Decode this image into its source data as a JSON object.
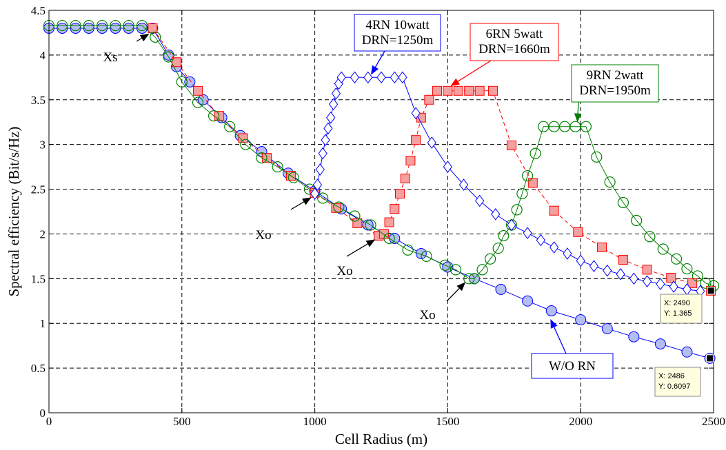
{
  "chart_data": {
    "type": "line",
    "xlabel": "Cell Radius (m)",
    "ylabel": "Spectral efficiency (Bit/s/Hz)",
    "xlim": [
      0,
      2500
    ],
    "ylim": [
      0,
      4.5
    ],
    "xticks": [
      0,
      500,
      1000,
      1500,
      2000,
      2500
    ],
    "yticks": [
      0,
      0.5,
      1,
      1.5,
      2,
      2.5,
      3,
      3.5,
      4,
      4.5
    ],
    "xtick_labels": [
      "0",
      "500",
      "1000",
      "1500",
      "2000",
      "2500"
    ],
    "ytick_labels": [
      "0",
      "0.5",
      "1",
      "1.5",
      "2",
      "2.5",
      "3",
      "3.5",
      "4",
      "4.5"
    ],
    "grid": true,
    "series": [
      {
        "marker": "circle-filled",
        "color": "#0000ff",
        "fill": "#b4bef0",
        "linestyle": "solid",
        "points": [
          [
            0,
            4.3
          ],
          [
            50,
            4.3
          ],
          [
            100,
            4.3
          ],
          [
            150,
            4.3
          ],
          [
            200,
            4.3
          ],
          [
            250,
            4.3
          ],
          [
            300,
            4.3
          ],
          [
            350,
            4.3
          ],
          [
            390,
            4.3
          ],
          [
            450,
            4.0
          ],
          [
            480,
            3.87
          ],
          [
            530,
            3.7
          ],
          [
            580,
            3.5
          ],
          [
            650,
            3.3
          ],
          [
            720,
            3.1
          ],
          [
            800,
            2.92
          ],
          [
            900,
            2.68
          ],
          [
            1000,
            2.48
          ],
          [
            1100,
            2.28
          ],
          [
            1200,
            2.1
          ],
          [
            1300,
            1.95
          ],
          [
            1400,
            1.78
          ],
          [
            1500,
            1.63
          ],
          [
            1600,
            1.5
          ],
          [
            1700,
            1.38
          ],
          [
            1800,
            1.25
          ],
          [
            1890,
            1.14
          ],
          [
            2000,
            1.04
          ],
          [
            2100,
            0.94
          ],
          [
            2200,
            0.85
          ],
          [
            2300,
            0.77
          ],
          [
            2400,
            0.68
          ],
          [
            2486,
            0.6097
          ]
        ]
      },
      {
        "marker": "square",
        "color": "#ff0000",
        "fill": "#f4a0a0",
        "linestyle": "dashed",
        "points": [
          [
            390,
            4.3
          ],
          [
            480,
            3.92
          ],
          [
            560,
            3.6
          ],
          [
            640,
            3.32
          ],
          [
            730,
            3.07
          ],
          [
            820,
            2.85
          ],
          [
            910,
            2.65
          ],
          [
            1000,
            2.46
          ],
          [
            1080,
            2.29
          ],
          [
            1160,
            2.12
          ],
          [
            1240,
            1.98
          ],
          [
            1260,
            2.0
          ],
          [
            1280,
            2.13
          ],
          [
            1300,
            2.28
          ],
          [
            1320,
            2.45
          ],
          [
            1340,
            2.62
          ],
          [
            1360,
            2.82
          ],
          [
            1380,
            3.05
          ],
          [
            1400,
            3.3
          ],
          [
            1430,
            3.5
          ],
          [
            1460,
            3.6
          ],
          [
            1500,
            3.6
          ],
          [
            1540,
            3.6
          ],
          [
            1580,
            3.6
          ],
          [
            1620,
            3.6
          ],
          [
            1670,
            3.6
          ],
          [
            1740,
            2.99
          ],
          [
            1820,
            2.57
          ],
          [
            1900,
            2.26
          ],
          [
            1990,
            2.02
          ],
          [
            2080,
            1.85
          ],
          [
            2160,
            1.71
          ],
          [
            2250,
            1.6
          ],
          [
            2340,
            1.51
          ],
          [
            2420,
            1.45
          ],
          [
            2490,
            1.365
          ]
        ]
      },
      {
        "marker": "circle-open",
        "color": "#008000",
        "fill": "none",
        "linestyle": "solid",
        "points": [
          [
            0,
            4.33
          ],
          [
            50,
            4.33
          ],
          [
            100,
            4.33
          ],
          [
            150,
            4.33
          ],
          [
            200,
            4.33
          ],
          [
            250,
            4.33
          ],
          [
            300,
            4.33
          ],
          [
            350,
            4.33
          ],
          [
            400,
            4.2
          ],
          [
            450,
            3.98
          ],
          [
            500,
            3.7
          ],
          [
            560,
            3.47
          ],
          [
            620,
            3.32
          ],
          [
            680,
            3.2
          ],
          [
            740,
            3.0
          ],
          [
            800,
            2.85
          ],
          [
            860,
            2.75
          ],
          [
            920,
            2.63
          ],
          [
            980,
            2.5
          ],
          [
            1030,
            2.4
          ],
          [
            1090,
            2.3
          ],
          [
            1150,
            2.2
          ],
          [
            1210,
            2.1
          ],
          [
            1280,
            1.95
          ],
          [
            1350,
            1.82
          ],
          [
            1420,
            1.75
          ],
          [
            1490,
            1.65
          ],
          [
            1530,
            1.6
          ],
          [
            1580,
            1.5
          ],
          [
            1600,
            1.5
          ],
          [
            1630,
            1.6
          ],
          [
            1660,
            1.72
          ],
          [
            1690,
            1.84
          ],
          [
            1710,
            1.98
          ],
          [
            1740,
            2.1
          ],
          [
            1760,
            2.27
          ],
          [
            1780,
            2.45
          ],
          [
            1800,
            2.65
          ],
          [
            1830,
            2.9
          ],
          [
            1860,
            3.2
          ],
          [
            1900,
            3.2
          ],
          [
            1940,
            3.2
          ],
          [
            1980,
            3.2
          ],
          [
            2020,
            3.2
          ],
          [
            2060,
            2.86
          ],
          [
            2110,
            2.58
          ],
          [
            2160,
            2.35
          ],
          [
            2210,
            2.15
          ],
          [
            2260,
            1.97
          ],
          [
            2310,
            1.83
          ],
          [
            2360,
            1.72
          ],
          [
            2400,
            1.61
          ],
          [
            2440,
            1.53
          ],
          [
            2470,
            1.45
          ],
          [
            2500,
            1.42
          ]
        ]
      },
      {
        "marker": "diamond",
        "color": "#0000ff",
        "fill": "none",
        "linestyle": "solid",
        "points": [
          [
            1000,
            2.45
          ],
          [
            1010,
            2.55
          ],
          [
            1020,
            2.72
          ],
          [
            1030,
            2.9
          ],
          [
            1040,
            3.05
          ],
          [
            1050,
            3.18
          ],
          [
            1060,
            3.3
          ],
          [
            1070,
            3.45
          ],
          [
            1080,
            3.57
          ],
          [
            1090,
            3.68
          ],
          [
            1100,
            3.75
          ],
          [
            1150,
            3.75
          ],
          [
            1200,
            3.75
          ],
          [
            1250,
            3.75
          ],
          [
            1300,
            3.75
          ],
          [
            1330,
            3.75
          ],
          [
            1380,
            3.35
          ],
          [
            1440,
            3.02
          ],
          [
            1500,
            2.75
          ],
          [
            1560,
            2.55
          ],
          [
            1620,
            2.37
          ],
          [
            1680,
            2.22
          ],
          [
            1740,
            2.1
          ],
          [
            1800,
            2.01
          ],
          [
            1850,
            1.93
          ],
          [
            1900,
            1.85
          ],
          [
            1950,
            1.78
          ],
          [
            2000,
            1.7
          ],
          [
            2050,
            1.64
          ],
          [
            2100,
            1.59
          ],
          [
            2150,
            1.55
          ],
          [
            2200,
            1.5
          ],
          [
            2250,
            1.47
          ],
          [
            2300,
            1.44
          ],
          [
            2350,
            1.41
          ],
          [
            2400,
            1.38
          ],
          [
            2450,
            1.36
          ]
        ]
      }
    ],
    "annotations": [
      {
        "lines": [
          "4RN 10watt",
          "DRN=1250m"
        ],
        "color": "#0000ff",
        "target": [
          1200,
          3.75
        ]
      },
      {
        "lines": [
          "6RN 5watt",
          "DRN=1660m"
        ],
        "color": "#ff0000",
        "target": [
          1500,
          3.62
        ]
      },
      {
        "lines": [
          "9RN 2watt",
          "DRN=1950m"
        ],
        "color": "#008000",
        "target": [
          1975,
          3.22
        ]
      },
      {
        "lines": [
          "W/O RN"
        ],
        "color": "#0000ff",
        "target": [
          1880,
          1.1
        ]
      }
    ],
    "markers": [
      {
        "text": "Xs",
        "target": [
          390,
          4.28
        ]
      },
      {
        "text": "Xo",
        "target": [
          1000,
          2.45
        ]
      },
      {
        "text": "Xo",
        "target": [
          1240,
          1.98
        ]
      },
      {
        "text": "Xo",
        "target": [
          1580,
          1.5
        ]
      }
    ],
    "datatips": [
      {
        "lines": [
          "X: 2490",
          "Y: 1.365"
        ],
        "point": [
          2490,
          1.365
        ]
      },
      {
        "lines": [
          "X: 2486",
          "Y: 0.6097"
        ],
        "point": [
          2486,
          0.6097
        ]
      }
    ]
  }
}
